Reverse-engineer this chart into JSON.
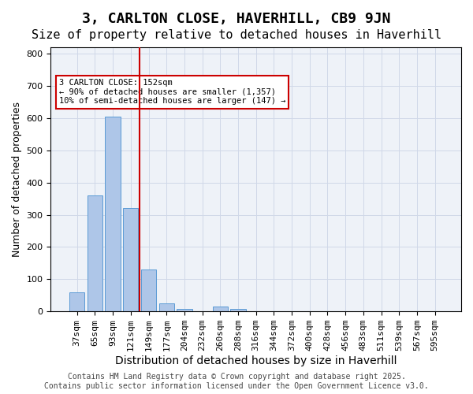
{
  "title": "3, CARLTON CLOSE, HAVERHILL, CB9 9JN",
  "subtitle": "Size of property relative to detached houses in Haverhill",
  "xlabel": "Distribution of detached houses by size in Haverhill",
  "ylabel": "Number of detached properties",
  "categories": [
    "37sqm",
    "65sqm",
    "93sqm",
    "121sqm",
    "149sqm",
    "177sqm",
    "204sqm",
    "232sqm",
    "260sqm",
    "288sqm",
    "316sqm",
    "344sqm",
    "372sqm",
    "400sqm",
    "428sqm",
    "456sqm",
    "483sqm",
    "511sqm",
    "539sqm",
    "567sqm",
    "595sqm"
  ],
  "values": [
    60,
    360,
    605,
    320,
    130,
    25,
    8,
    0,
    15,
    8,
    0,
    0,
    0,
    0,
    0,
    0,
    0,
    0,
    0,
    0,
    0
  ],
  "bar_color": "#aec6e8",
  "bar_edge_color": "#5b9bd5",
  "vline_x": 3.5,
  "vline_color": "#cc0000",
  "annotation_text": "3 CARLTON CLOSE: 152sqm\n← 90% of detached houses are smaller (1,357)\n10% of semi-detached houses are larger (147) →",
  "annotation_box_color": "#ffffff",
  "annotation_box_edge": "#cc0000",
  "ylim": [
    0,
    820
  ],
  "yticks": [
    0,
    100,
    200,
    300,
    400,
    500,
    600,
    700,
    800
  ],
  "grid_color": "#d0d8e8",
  "bg_color": "#eef2f8",
  "footer": "Contains HM Land Registry data © Crown copyright and database right 2025.\nContains public sector information licensed under the Open Government Licence v3.0.",
  "title_fontsize": 13,
  "subtitle_fontsize": 11,
  "xlabel_fontsize": 10,
  "ylabel_fontsize": 9,
  "tick_fontsize": 8,
  "footer_fontsize": 7
}
